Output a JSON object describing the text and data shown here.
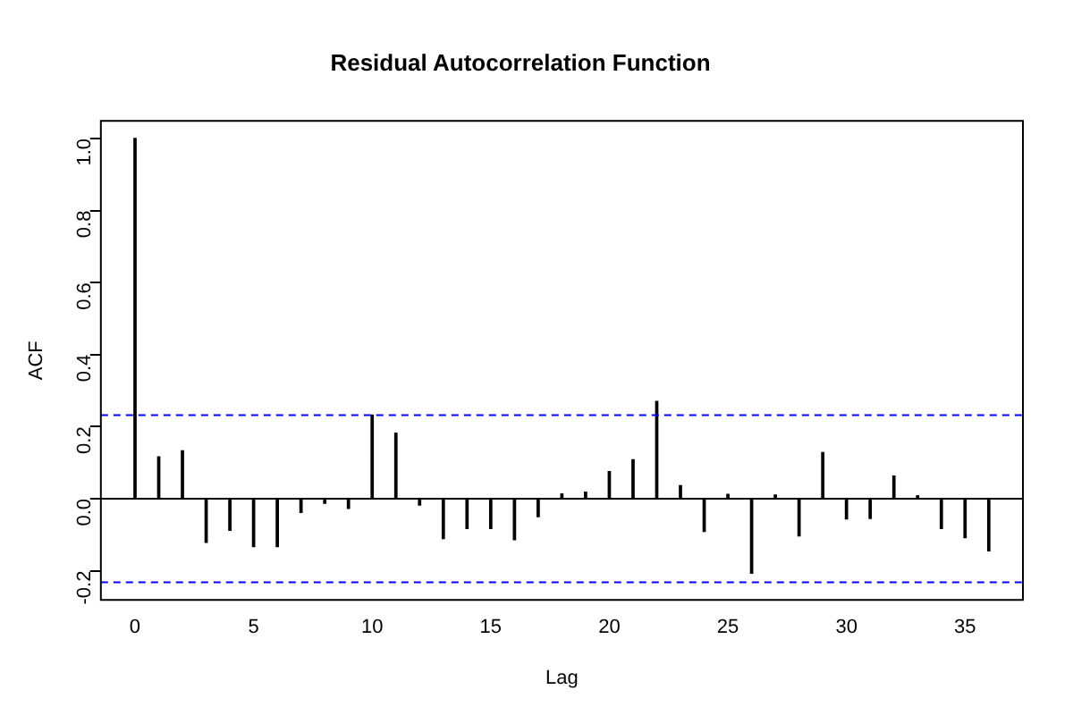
{
  "chart_data": {
    "type": "bar",
    "title": "Residual Autocorrelation Function",
    "xlabel": "Lag",
    "ylabel": "ACF",
    "x": [
      0,
      1,
      2,
      3,
      4,
      5,
      6,
      7,
      8,
      9,
      10,
      11,
      12,
      13,
      14,
      15,
      16,
      17,
      18,
      19,
      20,
      21,
      22,
      23,
      24,
      25,
      26,
      27,
      28,
      29,
      30,
      31,
      32,
      33,
      34,
      35,
      36
    ],
    "values": [
      1.0,
      0.116,
      0.133,
      -0.121,
      -0.088,
      -0.133,
      -0.133,
      -0.038,
      -0.013,
      -0.027,
      0.232,
      0.182,
      -0.018,
      -0.111,
      -0.083,
      -0.083,
      -0.114,
      -0.05,
      0.013,
      0.018,
      0.075,
      0.108,
      0.27,
      0.036,
      -0.091,
      0.012,
      -0.207,
      0.01,
      -0.103,
      0.128,
      -0.056,
      -0.055,
      0.063,
      0.008,
      -0.083,
      -0.108,
      -0.145
    ],
    "color": "#000000",
    "xlim": [
      -1.44,
      37.44
    ],
    "xticks": [
      0,
      5,
      10,
      15,
      20,
      25,
      30,
      35
    ],
    "ylim": [
      -0.281,
      1.049
    ],
    "yticks": [
      {
        "value": -0.2,
        "label": "-0.2"
      },
      {
        "value": 0,
        "label": "0.0"
      },
      0.2,
      0.4,
      0.6,
      0.8,
      {
        "value": 1,
        "label": "1.0"
      }
    ],
    "ref_lines": [
      {
        "axis": "y",
        "value": 0,
        "color": "#000000",
        "line_style": "solid"
      },
      {
        "axis": "y",
        "value": 0.232,
        "color": "#0000ff",
        "line_style": "dashed"
      },
      {
        "axis": "y",
        "value": -0.232,
        "color": "#0000ff",
        "line_style": "dashed"
      }
    ],
    "grid": false,
    "legend": false
  }
}
